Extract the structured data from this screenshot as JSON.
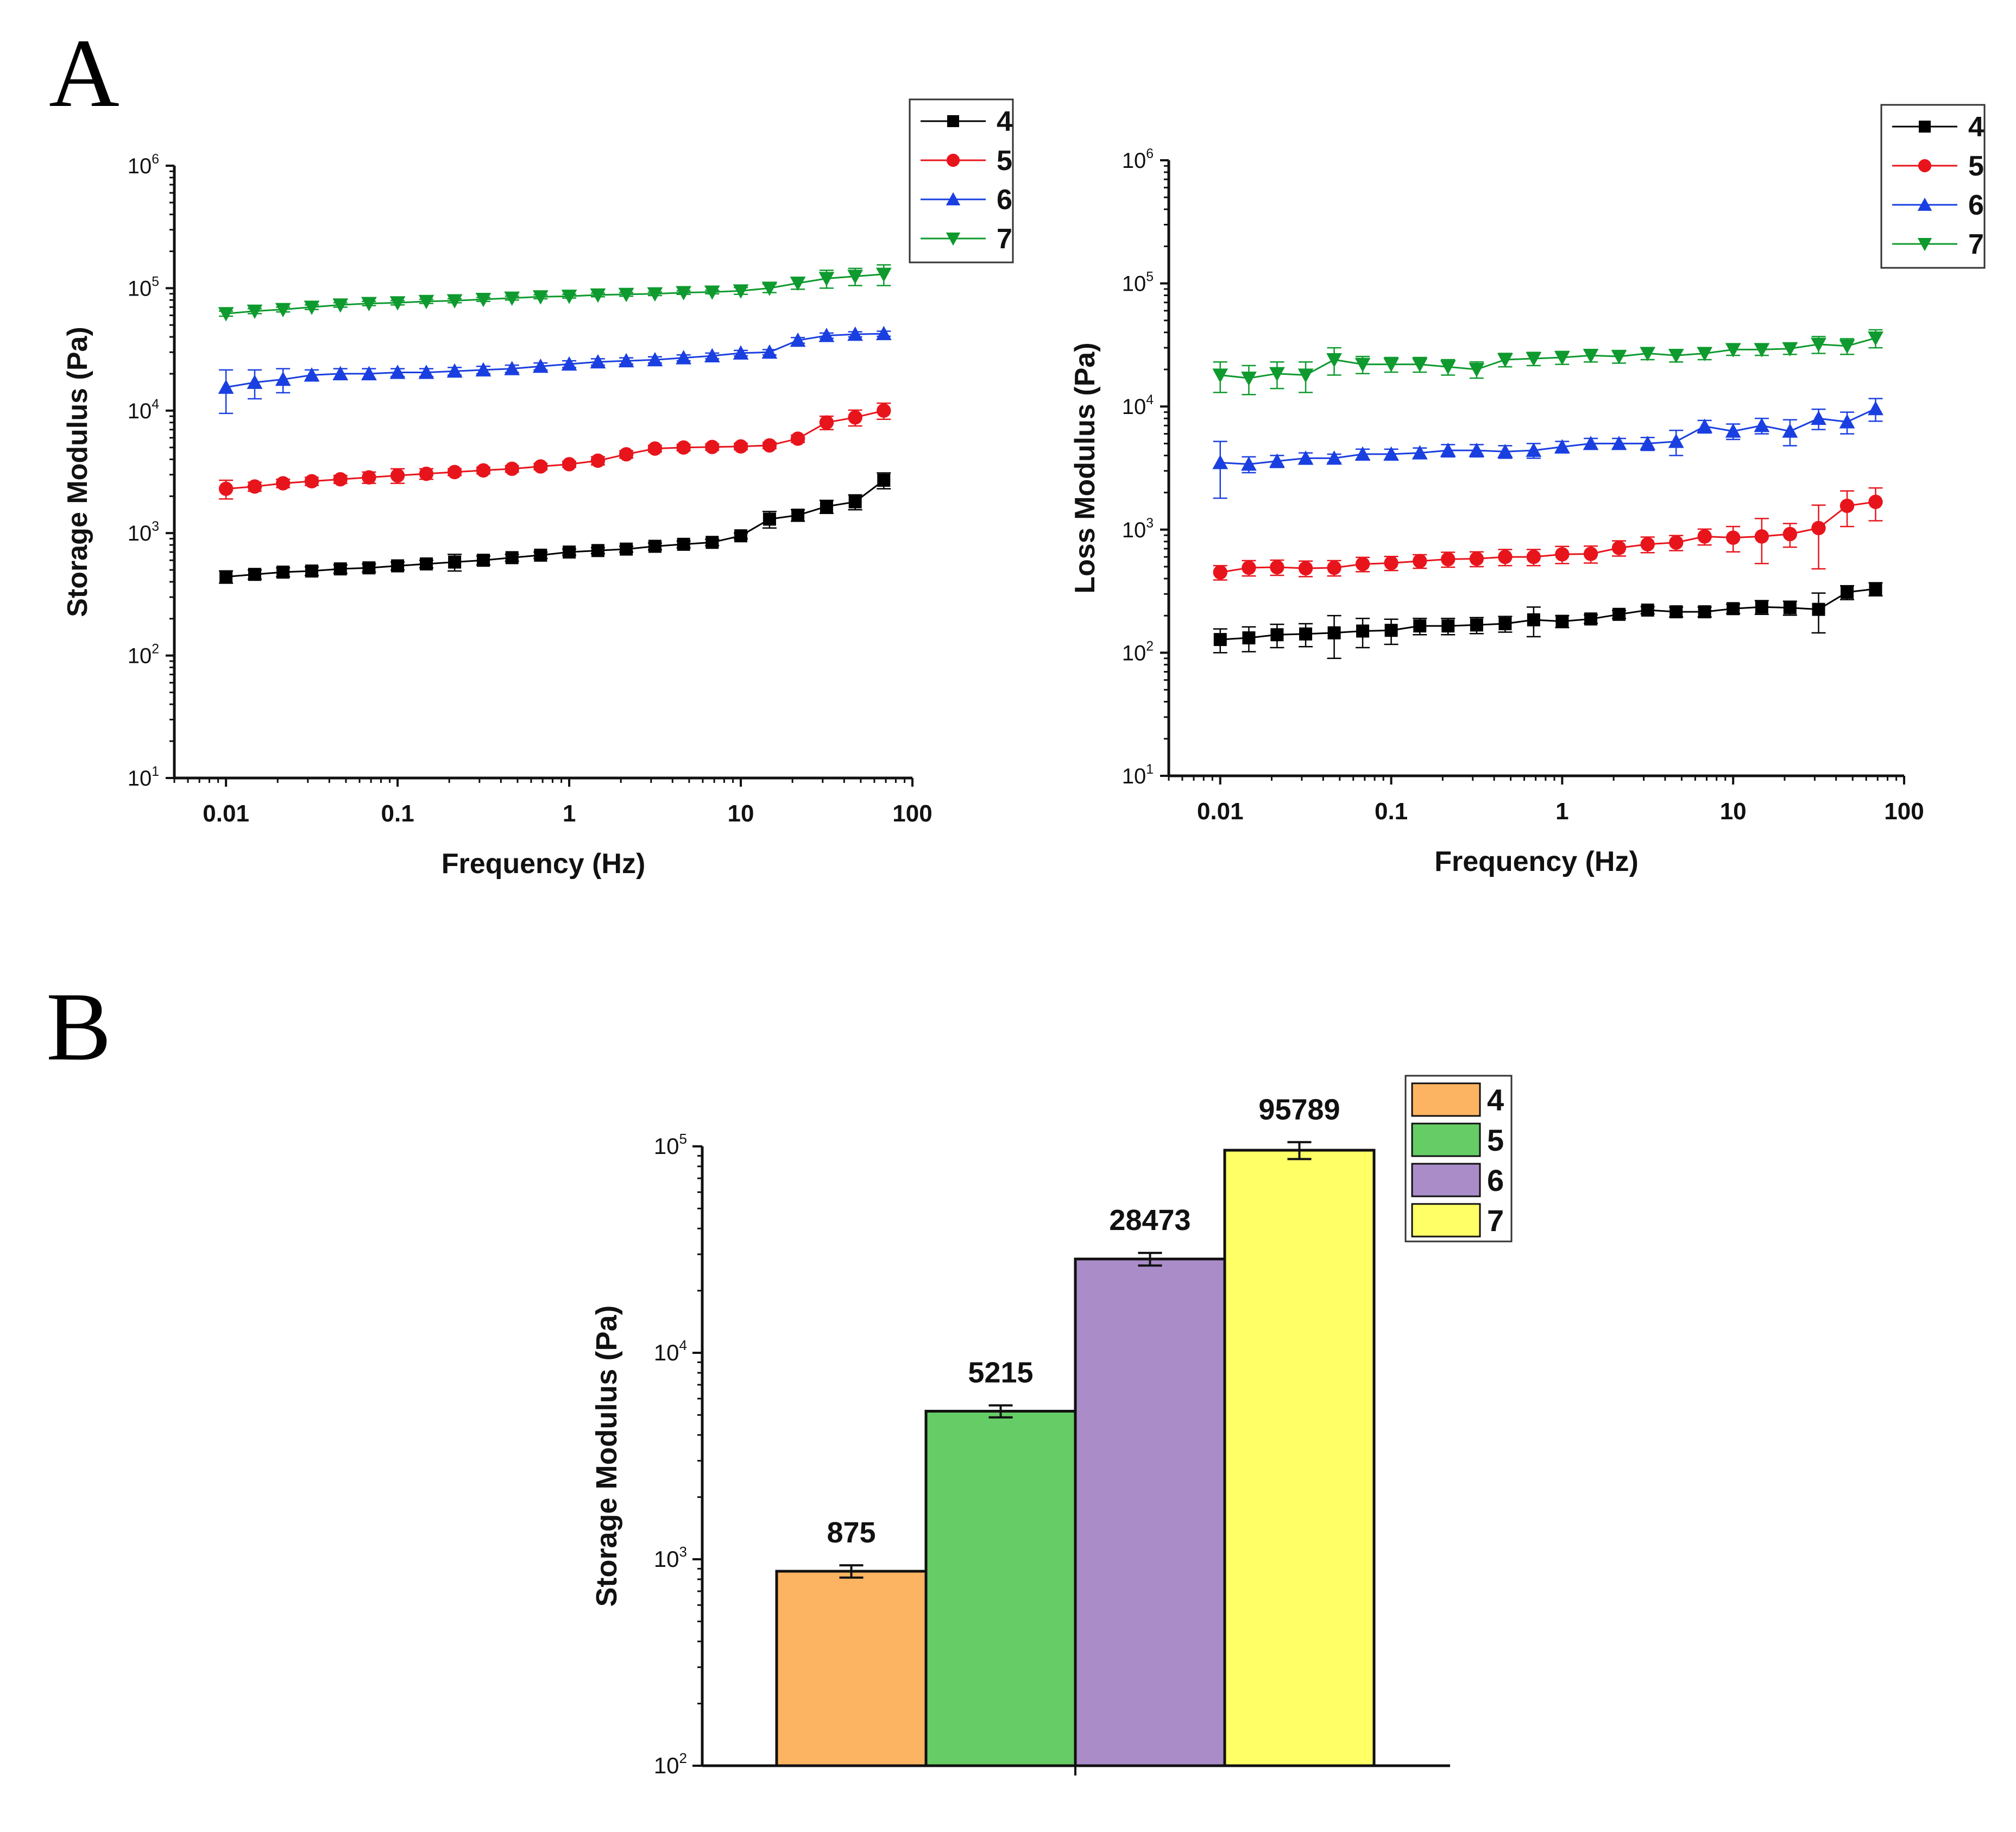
{
  "panel_labels": {
    "a": "A",
    "b": "B"
  },
  "colors": {
    "4": "#000000",
    "5": "#e8141c",
    "6": "#1a3fe0",
    "7": "#0e9a2e"
  },
  "bar_colors": {
    "4": "#fdb462",
    "5": "#66cc66",
    "6": "#a98cc8",
    "7": "#ffff66"
  },
  "markers": {
    "4": "square",
    "5": "circle",
    "6": "triangle-up",
    "7": "triangle-down"
  },
  "chart_data": [
    {
      "id": "storage",
      "type": "line",
      "xlabel": "Frequency (Hz)",
      "ylabel": "Storage Modulus (Pa)",
      "xscale": "log",
      "yscale": "log",
      "xlim": [
        0.005,
        100
      ],
      "ylim": [
        10,
        1000000
      ],
      "x_tick_labels": [
        "0.01",
        "0.1",
        "1",
        "10",
        "100"
      ],
      "y_tick_labels": [
        "10^1",
        "10^2",
        "10^3",
        "10^4",
        "10^5",
        "10^6"
      ],
      "legend": [
        "4",
        "5",
        "6",
        "7"
      ],
      "legend_position": "top-right",
      "x": [
        0.01,
        0.0147,
        0.0215,
        0.0316,
        0.0464,
        0.0681,
        0.1,
        0.147,
        0.215,
        0.316,
        0.464,
        0.681,
        1,
        1.47,
        2.15,
        3.16,
        4.64,
        6.81,
        10,
        14.7,
        21.5,
        31.6,
        46.4,
        68.1
      ],
      "series": [
        {
          "name": "4",
          "values": [
            440,
            460,
            480,
            490,
            510,
            520,
            540,
            560,
            580,
            600,
            630,
            660,
            700,
            720,
            740,
            780,
            810,
            840,
            950,
            1300,
            1400,
            1650,
            1800,
            2700
          ],
          "errors": [
            50,
            40,
            40,
            40,
            40,
            40,
            40,
            40,
            90,
            50,
            40,
            40,
            40,
            40,
            40,
            50,
            50,
            50,
            50,
            200,
            150,
            200,
            250,
            400
          ]
        },
        {
          "name": "5",
          "values": [
            2300,
            2400,
            2550,
            2650,
            2750,
            2850,
            2950,
            3050,
            3150,
            3250,
            3350,
            3500,
            3650,
            3900,
            4400,
            4900,
            5000,
            5050,
            5100,
            5200,
            5900,
            8000,
            8800,
            10000
          ],
          "errors": [
            400,
            200,
            200,
            200,
            200,
            300,
            400,
            300,
            200,
            200,
            200,
            200,
            200,
            300,
            300,
            300,
            300,
            300,
            300,
            300,
            400,
            1000,
            1300,
            1500
          ]
        },
        {
          "name": "6",
          "values": [
            15500,
            17000,
            18000,
            19500,
            20000,
            20000,
            20500,
            20500,
            21000,
            21500,
            22000,
            23000,
            24000,
            25000,
            25500,
            26000,
            27000,
            28000,
            29500,
            30000,
            37500,
            41000,
            42000,
            42500
          ],
          "errors": [
            6000,
            4500,
            4000,
            2000,
            2000,
            2000,
            1500,
            1500,
            1500,
            1500,
            1500,
            1500,
            1500,
            1500,
            1500,
            1500,
            1500,
            1500,
            1500,
            1500,
            2000,
            2000,
            2000,
            2000
          ]
        },
        {
          "name": "7",
          "values": [
            62000,
            65000,
            67000,
            70000,
            73000,
            75000,
            76000,
            78000,
            79000,
            81000,
            83000,
            85000,
            86000,
            88000,
            89000,
            90000,
            92000,
            93000,
            95000,
            100000,
            110000,
            120000,
            125000,
            130000
          ],
          "errors": [
            3000,
            3000,
            3000,
            3000,
            3000,
            3000,
            3000,
            3000,
            3000,
            3000,
            3000,
            3000,
            3000,
            3000,
            3000,
            3000,
            3000,
            3000,
            6000,
            8000,
            12000,
            20000,
            20000,
            25000
          ]
        }
      ]
    },
    {
      "id": "loss",
      "type": "line",
      "xlabel": "Frequency (Hz)",
      "ylabel": "Loss Modulus (Pa)",
      "xscale": "log",
      "yscale": "log",
      "xlim": [
        0.005,
        100
      ],
      "ylim": [
        10,
        1000000
      ],
      "x_tick_labels": [
        "0.01",
        "0.1",
        "1",
        "10",
        "100"
      ],
      "y_tick_labels": [
        "10^1",
        "10^2",
        "10^3",
        "10^4",
        "10^5",
        "10^6"
      ],
      "legend": [
        "4",
        "5",
        "6",
        "7"
      ],
      "legend_position": "top-right",
      "x": [
        0.01,
        0.0147,
        0.0215,
        0.0316,
        0.0464,
        0.0681,
        0.1,
        0.147,
        0.215,
        0.316,
        0.464,
        0.681,
        1,
        1.47,
        2.15,
        3.16,
        4.64,
        6.81,
        10,
        14.7,
        21.5,
        31.6,
        46.4,
        68.1
      ],
      "series": [
        {
          "name": "4",
          "values": [
            128,
            132,
            140,
            142,
            145,
            150,
            152,
            165,
            165,
            168,
            172,
            185,
            180,
            188,
            205,
            222,
            215,
            215,
            228,
            235,
            232,
            225,
            310,
            330
          ],
          "errors": [
            28,
            30,
            30,
            30,
            55,
            40,
            35,
            25,
            25,
            25,
            25,
            50,
            20,
            15,
            15,
            15,
            20,
            20,
            20,
            30,
            30,
            80,
            40,
            40
          ]
        },
        {
          "name": "5",
          "values": [
            450,
            490,
            495,
            485,
            490,
            525,
            535,
            555,
            575,
            580,
            600,
            600,
            630,
            635,
            710,
            760,
            785,
            880,
            860,
            880,
            920,
            1030,
            1560,
            1680
          ],
          "errors": [
            60,
            70,
            70,
            70,
            70,
            70,
            70,
            70,
            80,
            80,
            90,
            90,
            100,
            100,
            100,
            110,
            110,
            130,
            200,
            350,
            200,
            550,
            500,
            500
          ]
        },
        {
          "name": "6",
          "values": [
            3500,
            3400,
            3600,
            3800,
            3800,
            4100,
            4100,
            4200,
            4400,
            4400,
            4300,
            4400,
            4700,
            5000,
            5000,
            5000,
            5200,
            6900,
            6300,
            7000,
            6300,
            8000,
            7500,
            9600
          ],
          "errors": [
            1700,
            500,
            400,
            400,
            300,
            400,
            400,
            400,
            500,
            500,
            500,
            600,
            500,
            500,
            500,
            600,
            1200,
            800,
            900,
            1000,
            1500,
            1500,
            1500,
            2000
          ]
        },
        {
          "name": "7",
          "values": [
            18000,
            17000,
            18500,
            18000,
            24000,
            22000,
            22000,
            22000,
            21000,
            20000,
            24000,
            24500,
            25000,
            26000,
            25500,
            27000,
            26000,
            27000,
            29000,
            29000,
            29500,
            32000,
            31000,
            36000
          ],
          "errors": [
            5000,
            4500,
            4500,
            5000,
            6000,
            3500,
            3000,
            3000,
            3000,
            3000,
            3000,
            3000,
            3000,
            3000,
            3000,
            3000,
            3000,
            3000,
            3000,
            3000,
            3000,
            5000,
            4500,
            6000
          ]
        }
      ]
    },
    {
      "id": "bar",
      "type": "bar",
      "categories": [
        "4",
        "5",
        "6",
        "7"
      ],
      "values": [
        875,
        5215,
        28473,
        95789
      ],
      "value_labels": [
        "875",
        "5215",
        "28473",
        "95789"
      ],
      "errors": [
        60,
        350,
        2000,
        9000
      ],
      "ylabel": "Storage Modulus (Pa)",
      "yscale": "log",
      "ylim": [
        100,
        100000
      ],
      "y_tick_labels": [
        "10^2",
        "10^3",
        "10^4",
        "10^5"
      ],
      "legend": [
        "4",
        "5",
        "6",
        "7"
      ],
      "legend_position": "top-right"
    }
  ]
}
